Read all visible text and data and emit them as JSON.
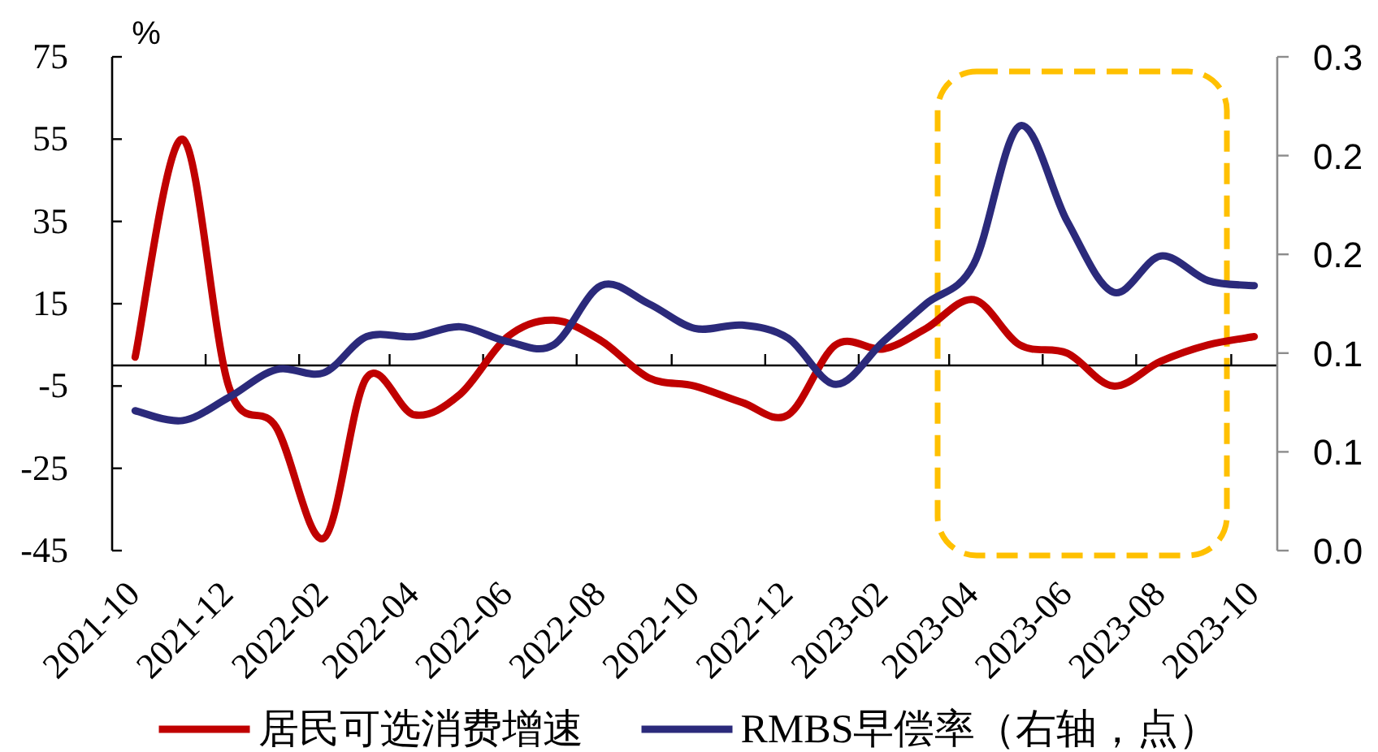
{
  "chart_data": {
    "type": "line",
    "ylabel": "%",
    "x": [
      "2021-10",
      "2021-11",
      "2021-12",
      "2022-01",
      "2022-02",
      "2022-03",
      "2022-04",
      "2022-05",
      "2022-06",
      "2022-07",
      "2022-08",
      "2022-09",
      "2022-10",
      "2022-11",
      "2022-12",
      "2023-01",
      "2023-02",
      "2023-03",
      "2023-04",
      "2023-05",
      "2023-06",
      "2023-07",
      "2023-08",
      "2023-09",
      "2023-10"
    ],
    "xlim": [
      "2021-09-16",
      "2023-10-16"
    ],
    "xticks": [
      "2021-10",
      {
        "value": "2021-11-16",
        "label": null
      },
      "2021-12",
      {
        "value": "2022-01-16",
        "label": null
      },
      "2022-02",
      {
        "value": "2022-03-16",
        "label": null
      },
      "2022-04",
      {
        "value": "2022-05-16",
        "label": null
      },
      "2022-06",
      {
        "value": "2022-07-16",
        "label": null
      },
      "2022-08",
      {
        "value": "2022-09-16",
        "label": null
      },
      "2022-10",
      {
        "value": "2022-11-16",
        "label": null
      },
      "2022-12",
      {
        "value": "2023-01-16",
        "label": null
      },
      "2023-02",
      {
        "value": "2023-03-16",
        "label": null
      },
      "2023-04",
      {
        "value": "2023-05-16",
        "label": null
      },
      "2023-06",
      {
        "value": "2023-07-16",
        "label": null
      },
      "2023-08",
      {
        "value": "2023-09-16",
        "label": null
      },
      "2023-10"
    ],
    "ylim": [
      -45,
      75
    ],
    "yticks": [
      -45,
      -25,
      -5,
      15,
      35,
      55,
      75
    ],
    "y2lim": [
      0,
      0.3
    ],
    "y2ticks": [
      {
        "value": 0,
        "label": "0.0"
      },
      {
        "value": 0.06,
        "label": "0.1"
      },
      {
        "value": 0.12,
        "label": "0.1"
      },
      {
        "value": 0.18,
        "label": "0.2"
      },
      {
        "value": 0.24,
        "label": "0.2"
      },
      0.3
    ],
    "series": [
      {
        "name": "居民可选消费增速",
        "color": "#c00000",
        "values": [
          2,
          55,
          -5,
          -15,
          -42,
          -3,
          -12,
          -7,
          7,
          11,
          6,
          -3,
          -5,
          -9,
          -12,
          5,
          4,
          9,
          16,
          5,
          3,
          -5,
          1,
          5,
          7
        ]
      },
      {
        "name": "RMBS早偿率（右轴，点）",
        "color": "#2b2a7b",
        "axis": "y2",
        "values": [
          0.085,
          0.079,
          0.093,
          0.11,
          0.108,
          0.13,
          0.13,
          0.136,
          0.127,
          0.125,
          0.161,
          0.15,
          0.135,
          0.137,
          0.129,
          0.101,
          0.127,
          0.15,
          0.174,
          0.258,
          0.2,
          0.157,
          0.179,
          0.164,
          0.161
        ]
      }
    ],
    "legend": "bottom"
  }
}
